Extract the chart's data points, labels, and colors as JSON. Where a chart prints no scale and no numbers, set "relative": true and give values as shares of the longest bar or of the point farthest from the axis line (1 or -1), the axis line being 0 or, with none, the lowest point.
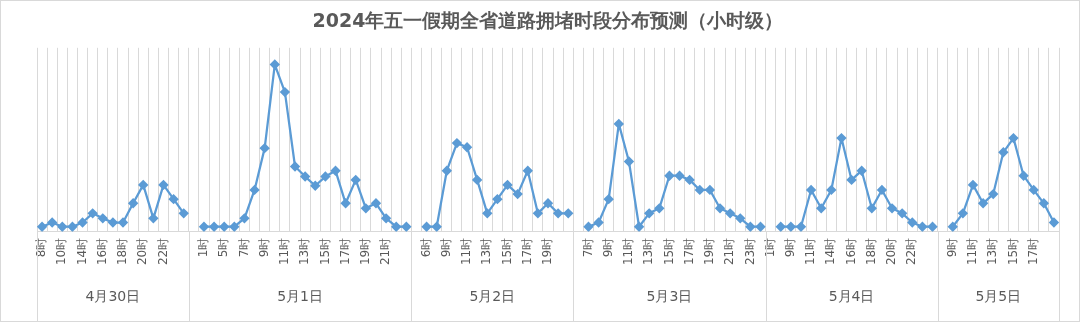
{
  "chart_data": {
    "type": "line",
    "title": "2024年五一假期全省道路拥堵时段分布预测（小时级）",
    "relative": true,
    "grid": "x",
    "marker": "diamond",
    "color": "#5b9bd5",
    "categories": [
      "8时",
      null,
      "10时",
      null,
      "14时",
      null,
      "16时",
      null,
      "18时",
      null,
      "20时",
      null,
      "22时",
      null,
      null,
      null,
      "1时",
      null,
      "5时",
      null,
      "7时",
      null,
      "9时",
      null,
      "11时",
      null,
      "13时",
      null,
      "15时",
      null,
      "17时",
      null,
      "19时",
      null,
      "21时",
      null,
      null,
      null,
      "6时",
      null,
      "9时",
      null,
      "11时",
      null,
      "13时",
      null,
      "15时",
      null,
      "17时",
      null,
      "19时",
      null,
      null,
      null,
      "7时",
      null,
      "9时",
      null,
      "11时",
      null,
      "13时",
      null,
      "15时",
      null,
      "17时",
      null,
      "19时",
      null,
      "21时",
      null,
      "23时",
      null,
      "1时",
      null,
      "9时",
      null,
      "11时",
      null,
      "14时",
      null,
      "16时",
      null,
      "18时",
      null,
      "20时",
      null,
      "22时",
      null,
      null,
      null,
      "9时",
      null,
      "11时",
      null,
      "13时",
      null,
      "15时",
      null,
      "17时",
      null,
      null
    ],
    "values": [
      0.03,
      0.055,
      0.03,
      0.03,
      0.055,
      0.11,
      0.08,
      0.055,
      0.055,
      0.17,
      0.28,
      0.08,
      0.28,
      0.195,
      0.11,
      null,
      0.03,
      0.03,
      0.03,
      0.03,
      0.08,
      0.25,
      0.5,
      1,
      0.835,
      0.39,
      0.33,
      0.275,
      0.33,
      0.365,
      0.17,
      0.31,
      0.14,
      0.17,
      0.08,
      0.03,
      0.03,
      null,
      0.03,
      0.03,
      0.365,
      0.53,
      0.505,
      0.31,
      0.11,
      0.195,
      0.28,
      0.225,
      0.365,
      0.11,
      0.17,
      0.11,
      0.11,
      null,
      0.03,
      0.055,
      0.195,
      0.645,
      0.42,
      0.03,
      0.11,
      0.14,
      0.335,
      0.335,
      0.31,
      0.25,
      0.25,
      0.14,
      0.11,
      0.08,
      0.03,
      0.03,
      null,
      0.03,
      0.03,
      0.03,
      0.25,
      0.14,
      0.25,
      0.56,
      0.31,
      0.365,
      0.14,
      0.25,
      0.14,
      0.11,
      0.055,
      0.03,
      0.03,
      null,
      0.03,
      0.11,
      0.28,
      0.17,
      0.225,
      0.475,
      0.56,
      0.335,
      0.25,
      0.17,
      0.055
    ],
    "annotations": [
      "4月30日",
      "5月1日",
      "5月2日",
      "5月3日",
      "5月4日",
      "5月5日"
    ]
  }
}
